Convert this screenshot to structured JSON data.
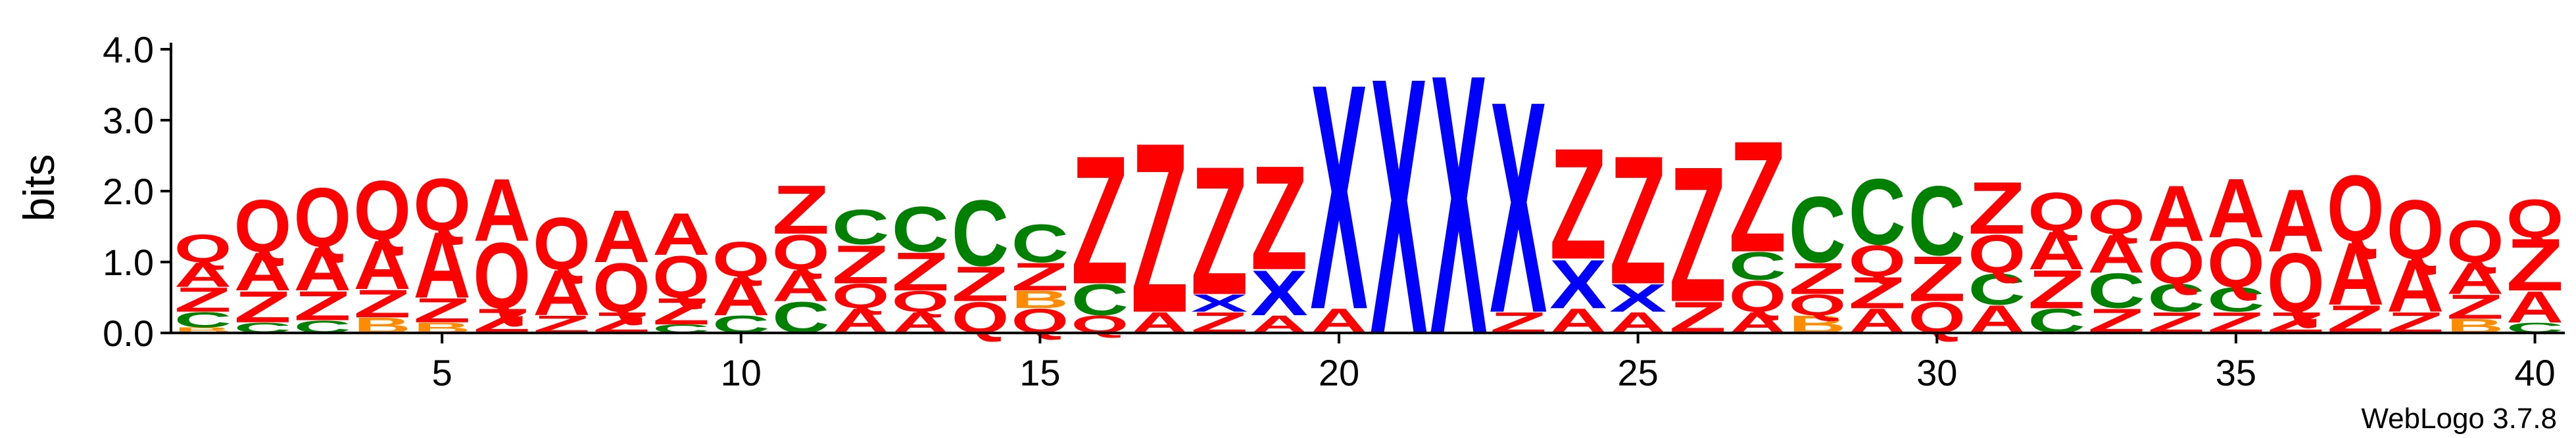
{
  "chart_data": {
    "type": "sequence-logo",
    "ylabel": "bits",
    "xlabel": "",
    "ylim": [
      0,
      4.0
    ],
    "yticks": [
      "0.0",
      "1.0",
      "2.0",
      "3.0",
      "4.0"
    ],
    "xticks": [
      5,
      10,
      15,
      20,
      25,
      30,
      35,
      40
    ],
    "colors": {
      "Q": "#ff0000",
      "A": "#ff0000",
      "Z": "#ff0000",
      "X": "#0000ff",
      "C": "#008000",
      "B": "#ff8c00",
      "P": "#800080"
    },
    "positions": [
      {
        "pos": 1,
        "stack": [
          [
            "B",
            0.08
          ],
          [
            "C",
            0.22
          ],
          [
            "Z",
            0.35
          ],
          [
            "A",
            0.35
          ],
          [
            "Q",
            0.4
          ]
        ]
      },
      {
        "pos": 2,
        "stack": [
          [
            "C",
            0.15
          ],
          [
            "Z",
            0.45
          ],
          [
            "A",
            0.55
          ],
          [
            "Q",
            0.75
          ]
        ]
      },
      {
        "pos": 3,
        "stack": [
          [
            "C",
            0.18
          ],
          [
            "Z",
            0.42
          ],
          [
            "A",
            0.62
          ],
          [
            "Q",
            0.85
          ]
        ]
      },
      {
        "pos": 4,
        "stack": [
          [
            "B",
            0.22
          ],
          [
            "Z",
            0.4
          ],
          [
            "A",
            0.7
          ],
          [
            "Q",
            0.85
          ]
        ]
      },
      {
        "pos": 5,
        "stack": [
          [
            "B",
            0.15
          ],
          [
            "Z",
            0.35
          ],
          [
            "A",
            0.95
          ],
          [
            "Q",
            0.75
          ]
        ]
      },
      {
        "pos": 6,
        "stack": [
          [
            "Z",
            0.35
          ],
          [
            "Q",
            0.95
          ],
          [
            "A",
            0.9
          ]
        ]
      },
      {
        "pos": 7,
        "stack": [
          [
            "Z",
            0.25
          ],
          [
            "A",
            0.65
          ],
          [
            "Q",
            0.75
          ]
        ]
      },
      {
        "pos": 8,
        "stack": [
          [
            "Z",
            0.3
          ],
          [
            "Q",
            0.7
          ],
          [
            "A",
            0.75
          ]
        ]
      },
      {
        "pos": 9,
        "stack": [
          [
            "C",
            0.12
          ],
          [
            "Z",
            0.38
          ],
          [
            "Q",
            0.6
          ],
          [
            "A",
            0.6
          ]
        ]
      },
      {
        "pos": 10,
        "stack": [
          [
            "C",
            0.25
          ],
          [
            "A",
            0.55
          ],
          [
            "Q",
            0.5
          ]
        ]
      },
      {
        "pos": 11,
        "stack": [
          [
            "C",
            0.45
          ],
          [
            "A",
            0.45
          ],
          [
            "Q",
            0.5
          ],
          [
            "Z",
            0.7
          ]
        ]
      },
      {
        "pos": 12,
        "stack": [
          [
            "A",
            0.35
          ],
          [
            "Q",
            0.35
          ],
          [
            "Z",
            0.55
          ],
          [
            "C",
            0.5
          ]
        ]
      },
      {
        "pos": 13,
        "stack": [
          [
            "A",
            0.3
          ],
          [
            "Q",
            0.3
          ],
          [
            "Z",
            0.55
          ],
          [
            "C",
            0.65
          ]
        ]
      },
      {
        "pos": 14,
        "stack": [
          [
            "Q",
            0.45
          ],
          [
            "Z",
            0.5
          ],
          [
            "C",
            0.95
          ]
        ]
      },
      {
        "pos": 15,
        "stack": [
          [
            "Q",
            0.35
          ],
          [
            "B",
            0.25
          ],
          [
            "Z",
            0.4
          ],
          [
            "C",
            0.55
          ]
        ]
      },
      {
        "pos": 16,
        "stack": [
          [
            "Q",
            0.25
          ],
          [
            "C",
            0.45
          ],
          [
            "Z",
            1.85
          ]
        ]
      },
      {
        "pos": 17,
        "stack": [
          [
            "A",
            0.3
          ],
          [
            "Z",
            2.45
          ]
        ]
      },
      {
        "pos": 18,
        "stack": [
          [
            "Z",
            0.3
          ],
          [
            "X",
            0.25
          ],
          [
            "Z",
            1.85
          ]
        ]
      },
      {
        "pos": 19,
        "stack": [
          [
            "A",
            0.25
          ],
          [
            "X",
            0.65
          ],
          [
            "Z",
            1.5
          ]
        ]
      },
      {
        "pos": 20,
        "stack": [
          [
            "A",
            0.35
          ],
          [
            "X",
            3.25
          ]
        ]
      },
      {
        "pos": 21,
        "stack": [
          [
            "X",
            3.7
          ]
        ]
      },
      {
        "pos": 22,
        "stack": [
          [
            "X",
            3.75
          ]
        ]
      },
      {
        "pos": 23,
        "stack": [
          [
            "Z",
            0.3
          ],
          [
            "X",
            3.05
          ]
        ]
      },
      {
        "pos": 24,
        "stack": [
          [
            "A",
            0.35
          ],
          [
            "X",
            0.7
          ],
          [
            "Z",
            1.6
          ]
        ]
      },
      {
        "pos": 25,
        "stack": [
          [
            "A",
            0.3
          ],
          [
            "X",
            0.4
          ],
          [
            "Z",
            1.85
          ]
        ]
      },
      {
        "pos": 26,
        "stack": [
          [
            "Z",
            0.45
          ],
          [
            "Z",
            1.95
          ]
        ]
      },
      {
        "pos": 27,
        "stack": [
          [
            "A",
            0.3
          ],
          [
            "Q",
            0.45
          ],
          [
            "C",
            0.4
          ],
          [
            "Z",
            1.6
          ]
        ]
      },
      {
        "pos": 28,
        "stack": [
          [
            "B",
            0.25
          ],
          [
            "Q",
            0.3
          ],
          [
            "Z",
            0.45
          ],
          [
            "C",
            0.95
          ]
        ]
      },
      {
        "pos": 29,
        "stack": [
          [
            "A",
            0.35
          ],
          [
            "Z",
            0.45
          ],
          [
            "Q",
            0.45
          ],
          [
            "C",
            0.95
          ]
        ]
      },
      {
        "pos": 30,
        "stack": [
          [
            "Q",
            0.45
          ],
          [
            "Z",
            0.65
          ],
          [
            "C",
            1.0
          ]
        ]
      },
      {
        "pos": 31,
        "stack": [
          [
            "A",
            0.4
          ],
          [
            "C",
            0.45
          ],
          [
            "Q",
            0.55
          ],
          [
            "Z",
            0.75
          ]
        ]
      },
      {
        "pos": 32,
        "stack": [
          [
            "C",
            0.35
          ],
          [
            "Z",
            0.55
          ],
          [
            "A",
            0.55
          ],
          [
            "Q",
            0.55
          ]
        ]
      },
      {
        "pos": 33,
        "stack": [
          [
            "Z",
            0.35
          ],
          [
            "C",
            0.5
          ],
          [
            "A",
            0.55
          ],
          [
            "Q",
            0.5
          ]
        ]
      },
      {
        "pos": 34,
        "stack": [
          [
            "Z",
            0.3
          ],
          [
            "C",
            0.4
          ],
          [
            "Q",
            0.6
          ],
          [
            "A",
            0.8
          ]
        ]
      },
      {
        "pos": 35,
        "stack": [
          [
            "Z",
            0.3
          ],
          [
            "C",
            0.35
          ],
          [
            "Q",
            0.7
          ],
          [
            "A",
            0.85
          ]
        ]
      },
      {
        "pos": 36,
        "stack": [
          [
            "Z",
            0.3
          ],
          [
            "Q",
            0.85
          ],
          [
            "A",
            0.9
          ]
        ]
      },
      {
        "pos": 37,
        "stack": [
          [
            "Z",
            0.4
          ],
          [
            "A",
            0.9
          ],
          [
            "Q",
            0.95
          ]
        ]
      },
      {
        "pos": 38,
        "stack": [
          [
            "Z",
            0.3
          ],
          [
            "A",
            0.75
          ],
          [
            "Q",
            0.85
          ]
        ]
      },
      {
        "pos": 39,
        "stack": [
          [
            "B",
            0.2
          ],
          [
            "Z",
            0.35
          ],
          [
            "A",
            0.45
          ],
          [
            "Q",
            0.6
          ]
        ]
      },
      {
        "pos": 40,
        "stack": [
          [
            "C",
            0.15
          ],
          [
            "A",
            0.45
          ],
          [
            "Z",
            0.75
          ],
          [
            "Q",
            0.55
          ]
        ]
      }
    ]
  },
  "footer": {
    "watermark": "WebLogo 3.7.8"
  }
}
